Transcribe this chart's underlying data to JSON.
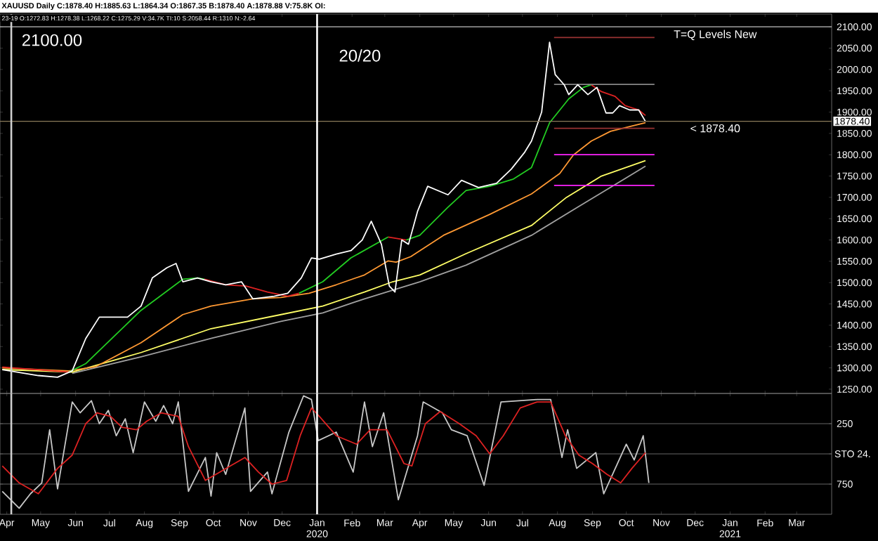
{
  "chart_data": [
    {
      "type": "line",
      "title": "XAUUSD Daily C:1878.40 H:1885.63 L:1864.34 O:1867.35 B:1878.40 A:1878.88 V:75.8K OI:",
      "subtitle": "23-19 O:1272.83 H:1278.38 L:1268.22 C:1275.29 V:34.7K TI:10 S:2058.44 R:1310 N:-2.64",
      "annotations": [
        "2100.00",
        "1878.40"
      ],
      "xlim": [
        "2019-03-26",
        "2021-04-01"
      ],
      "xticks": [
        "2019-04-01",
        "2019-05-01",
        "2019-06-01",
        "2019-07-01",
        "2019-08-01",
        "2019-09-01",
        "2019-10-01",
        "2019-11-01",
        "2019-12-01",
        "2020-01-01",
        "2020-02-01",
        "2020-03-01",
        "2020-04-01",
        "2020-05-01",
        "2020-06-01",
        "2020-07-01",
        "2020-08-01",
        "2020-09-01",
        "2020-10-01",
        "2020-11-01",
        "2020-12-01",
        "2021-01-01",
        "2021-02-01",
        "2021-03-01"
      ],
      "ylim": [
        1240,
        2130
      ],
      "yticks": [
        {
          "value": 1250,
          "label": "1250.00"
        },
        {
          "value": 1300,
          "label": "1300.00"
        },
        {
          "value": 1350,
          "label": "1350.00"
        },
        {
          "value": 1400,
          "label": "1400.00"
        },
        {
          "value": 1450,
          "label": "1450.00"
        },
        {
          "value": 1500,
          "label": "1500.00"
        },
        {
          "value": 1550,
          "label": "1550.00"
        },
        {
          "value": 1600,
          "label": "1600.00"
        },
        {
          "value": 1650,
          "label": "1650.00"
        },
        {
          "value": 1700,
          "label": "1700.00"
        },
        {
          "value": 1750,
          "label": "1750.00"
        },
        {
          "value": 1800,
          "label": "1800.00"
        },
        {
          "value": 1850,
          "label": "1850.00"
        },
        {
          "value": 1900,
          "label": "1900.00"
        },
        {
          "value": 1950,
          "label": "1950.00"
        },
        {
          "value": 2000,
          "label": "2000.00"
        },
        {
          "value": 2050,
          "label": "2050.00"
        },
        {
          "value": 2100,
          "label": "2100.00"
        }
      ],
      "tick_labels": "y",
      "ref_lines": [
        {
          "axis": "y",
          "value": 2100,
          "label": "T=Q Levels New",
          "color": "#c0c0c0"
        },
        {
          "axis": "y",
          "value": 1878.4,
          "label": "< 1878.40",
          "color": "#8a7a5a"
        },
        {
          "axis": "x",
          "value": "2020-01-01",
          "label": "20/20",
          "color": "#ffffff"
        },
        {
          "axis": "x",
          "value": "2019-04-05",
          "color": "#d0d0d0"
        }
      ],
      "series": [
        {
          "color": "#a0a0a0",
          "x": [
            "2019-05-29",
            "2019-07-29",
            "2019-09-29",
            "2019-11-30",
            "2020-01-06",
            "2020-02-12",
            "2020-04-01",
            "2020-05-12",
            "2020-07-09",
            "2020-08-19",
            "2020-10-18"
          ],
          "values": [
            1287,
            1326,
            1369,
            1409,
            1429,
            1462,
            1502,
            1541,
            1611,
            1677,
            1773
          ]
        },
        {
          "color": "#ffff66",
          "x": [
            "2019-03-28",
            "2019-05-29",
            "2019-07-29",
            "2019-09-29",
            "2019-11-30",
            "2020-01-06",
            "2020-02-12",
            "2020-03-08",
            "2020-04-01",
            "2020-05-12",
            "2020-07-09",
            "2020-08-09",
            "2020-09-09",
            "2020-10-18"
          ],
          "values": [
            1296,
            1290,
            1336,
            1392,
            1425,
            1445,
            1478,
            1502,
            1518,
            1568,
            1634,
            1700,
            1750,
            1786
          ]
        },
        {
          "color": "#ff9933",
          "x": [
            "2019-03-28",
            "2019-05-26",
            "2019-06-19",
            "2019-07-29",
            "2019-09-04",
            "2019-09-29",
            "2019-11-05",
            "2019-11-30",
            "2019-12-25",
            "2020-01-18",
            "2020-02-12",
            "2020-03-04",
            "2020-03-11",
            "2020-03-24",
            "2020-04-22",
            "2020-06-02",
            "2020-07-09",
            "2020-08-03",
            "2020-08-15",
            "2020-08-31",
            "2020-09-17",
            "2020-10-18"
          ],
          "values": [
            1300,
            1293,
            1303,
            1359,
            1425,
            1445,
            1462,
            1465,
            1475,
            1495,
            1518,
            1551,
            1548,
            1561,
            1611,
            1660,
            1708,
            1756,
            1799,
            1832,
            1855,
            1875
          ]
        },
        {
          "color": "#22cc22",
          "x": [
            "2019-05-26",
            "2019-06-10",
            "2019-07-29",
            "2019-09-04",
            "2019-09-17",
            "2019-09-23",
            "2019-10-01",
            "2019-12-16",
            "2020-01-06",
            "2020-01-31",
            "2020-03-04",
            "2020-03-12",
            "2020-03-20",
            "2020-04-01",
            "2020-04-26",
            "2020-05-12",
            "2020-06-02",
            "2020-06-23",
            "2020-07-09",
            "2020-07-25",
            "2020-08-11",
            "2020-08-24",
            "2020-08-31"
          ],
          "values": [
            1290,
            1310,
            1435,
            1508,
            1511,
            1508,
            null,
            1475,
            1502,
            1558,
            1607,
            null,
            1600,
            1611,
            1677,
            1716,
            1726,
            1743,
            1770,
            1875,
            1931,
            1958,
            1964
          ]
        },
        {
          "color": "#dd2222",
          "x": [
            "2019-03-28",
            "2019-05-26",
            "2019-06-01",
            "2019-09-23",
            "2019-10-12",
            "2019-10-30",
            "2019-11-18",
            "2019-12-06",
            "2019-12-16",
            "2020-01-01",
            "2020-03-04",
            "2020-03-20",
            "2020-04-01",
            "2020-08-31",
            "2020-09-09",
            "2020-09-21",
            "2020-09-30",
            "2020-10-12",
            "2020-10-18"
          ],
          "values": [
            1302,
            1290,
            null,
            1508,
            1495,
            1492,
            1478,
            1468,
            1475,
            null,
            1607,
            1600,
            null,
            1964,
            1948,
            1937,
            1915,
            1905,
            1892
          ]
        },
        {
          "color": "#993333",
          "x": [
            "2020-07-29",
            "2020-10-26"
          ],
          "values": [
            2075,
            2075
          ]
        },
        {
          "color": "#888888",
          "x": [
            "2020-07-29",
            "2020-10-26"
          ],
          "values": [
            1965,
            1965
          ]
        },
        {
          "color": "#993333",
          "x": [
            "2020-07-29",
            "2020-10-26"
          ],
          "values": [
            1862,
            1862
          ]
        },
        {
          "color": "#ff22ff",
          "x": [
            "2020-07-29",
            "2020-10-26"
          ],
          "values": [
            1800,
            1800
          ]
        },
        {
          "color": "#ff22ff",
          "x": [
            "2020-07-29",
            "2020-10-26"
          ],
          "values": [
            1728,
            1728
          ]
        },
        {
          "color": "#ffffff",
          "x": [
            "2019-03-28",
            "2019-04-29",
            "2019-05-16",
            "2019-05-29",
            "2019-06-10",
            "2019-06-22",
            "2019-07-17",
            "2019-07-29",
            "2019-08-08",
            "2019-08-21",
            "2019-08-29",
            "2019-09-04",
            "2019-09-17",
            "2019-09-29",
            "2019-10-12",
            "2019-10-26",
            "2019-11-05",
            "2019-11-24",
            "2019-12-06",
            "2019-12-18",
            "2019-12-27",
            "2020-01-03",
            "2020-01-18",
            "2020-01-31",
            "2020-02-10",
            "2020-02-18",
            "2020-02-27",
            "2020-03-05",
            "2020-03-10",
            "2020-03-16",
            "2020-03-22",
            "2020-03-30",
            "2020-04-08",
            "2020-04-26",
            "2020-05-08",
            "2020-05-23",
            "2020-06-08",
            "2020-06-21",
            "2020-07-03",
            "2020-07-09",
            "2020-07-18",
            "2020-07-25",
            "2020-07-30",
            "2020-08-07",
            "2020-08-11",
            "2020-08-19",
            "2020-08-28",
            "2020-09-05",
            "2020-09-13",
            "2020-09-19",
            "2020-09-25",
            "2020-10-04",
            "2020-10-12",
            "2020-10-18"
          ],
          "values": [
            1296,
            1282,
            1278,
            1293,
            1369,
            1419,
            1419,
            1445,
            1511,
            1535,
            1545,
            1502,
            1511,
            1502,
            1495,
            1502,
            1462,
            1468,
            1475,
            1511,
            1558,
            1555,
            1567,
            1575,
            1600,
            1644,
            1590,
            1492,
            1478,
            1600,
            1590,
            1667,
            1726,
            1706,
            1740,
            1723,
            1733,
            1766,
            1806,
            1832,
            1900,
            2064,
            1988,
            1964,
            1941,
            1964,
            1941,
            1958,
            1898,
            1898,
            1915,
            1905,
            1905,
            1878
          ]
        }
      ]
    },
    {
      "type": "line",
      "annotations": [
        "STO 24."
      ],
      "xlim": [
        "2019-03-26",
        "2021-04-01"
      ],
      "xticks": [
        {
          "value": "2019-04-01",
          "label": "Apr"
        },
        {
          "value": "2019-05-01",
          "label": "May"
        },
        {
          "value": "2019-06-01",
          "label": "Jun"
        },
        {
          "value": "2019-07-01",
          "label": "Jul"
        },
        {
          "value": "2019-08-01",
          "label": "Aug"
        },
        {
          "value": "2019-09-01",
          "label": "Sep"
        },
        {
          "value": "2019-10-01",
          "label": "Oct"
        },
        {
          "value": "2019-11-01",
          "label": "Nov"
        },
        {
          "value": "2019-12-01",
          "label": "Dec"
        },
        {
          "value": "2020-01-01",
          "label": "Jan 2020"
        },
        {
          "value": "2020-02-01",
          "label": "Feb"
        },
        {
          "value": "2020-03-01",
          "label": "Mar"
        },
        {
          "value": "2020-04-01",
          "label": "Apr"
        },
        {
          "value": "2020-05-01",
          "label": "May"
        },
        {
          "value": "2020-06-01",
          "label": "Jun"
        },
        {
          "value": "2020-07-01",
          "label": "Jul"
        },
        {
          "value": "2020-08-01",
          "label": "Aug"
        },
        {
          "value": "2020-09-01",
          "label": "Sep"
        },
        {
          "value": "2020-10-01",
          "label": "Oct"
        },
        {
          "value": "2020-11-01",
          "label": "Nov"
        },
        {
          "value": "2020-12-01",
          "label": "Dec"
        },
        {
          "value": "2021-01-01",
          "label": "Jan 2021"
        },
        {
          "value": "2021-02-01",
          "label": "Feb"
        },
        {
          "value": "2021-03-01",
          "label": "Mar"
        }
      ],
      "ylim": [
        1000,
        0
      ],
      "yticks": [
        250,
        {
          "value": 500,
          "label": null
        },
        750
      ],
      "grid": "y",
      "ref_lines": [
        {
          "axis": "x",
          "value": "2020-01-01",
          "color": "#ffffff"
        },
        {
          "axis": "x",
          "value": "2019-04-05",
          "color": "#d0d0d0"
        }
      ],
      "series": [
        {
          "color": "#c8c8c8",
          "x": [
            "2019-03-28",
            "2019-04-12",
            "2019-04-22",
            "2019-05-02",
            "2019-05-09",
            "2019-05-16",
            "2019-05-29",
            "2019-06-05",
            "2019-06-15",
            "2019-06-22",
            "2019-06-30",
            "2019-07-07",
            "2019-07-15",
            "2019-07-22",
            "2019-08-01",
            "2019-08-11",
            "2019-08-18",
            "2019-08-26",
            "2019-08-31",
            "2019-09-09",
            "2019-09-24",
            "2019-09-29",
            "2019-10-04",
            "2019-10-12",
            "2019-10-29",
            "2019-11-03",
            "2019-11-18",
            "2019-11-22",
            "2019-12-07",
            "2019-12-20",
            "2019-12-27",
            "2020-01-02",
            "2020-01-18",
            "2020-02-02",
            "2020-02-12",
            "2020-02-19",
            "2020-02-29",
            "2020-03-13",
            "2020-03-30",
            "2020-04-04",
            "2020-04-21",
            "2020-04-29",
            "2020-05-13",
            "2020-05-28",
            "2020-06-12",
            "2020-07-14",
            "2020-07-26",
            "2020-08-05",
            "2020-08-10",
            "2020-08-18",
            "2020-09-04",
            "2020-09-11",
            "2020-10-01",
            "2020-10-08",
            "2020-10-16",
            "2020-10-21"
          ],
          "values": [
            810,
            950,
            830,
            740,
            300,
            790,
            70,
            160,
            60,
            250,
            140,
            350,
            210,
            490,
            70,
            230,
            100,
            250,
            70,
            810,
            530,
            850,
            490,
            670,
            120,
            810,
            650,
            830,
            320,
            20,
            50,
            390,
            320,
            650,
            70,
            440,
            160,
            880,
            350,
            70,
            160,
            300,
            350,
            760,
            70,
            50,
            50,
            530,
            300,
            620,
            490,
            830,
            420,
            550,
            350,
            740
          ]
        },
        {
          "color": "#dd2222",
          "x": [
            "2019-03-28",
            "2019-04-12",
            "2019-04-29",
            "2019-05-16",
            "2019-05-29",
            "2019-06-10",
            "2019-06-20",
            "2019-07-02",
            "2019-07-12",
            "2019-07-25",
            "2019-08-03",
            "2019-08-16",
            "2019-08-31",
            "2019-09-09",
            "2019-09-24",
            "2019-10-07",
            "2019-10-16",
            "2019-10-29",
            "2019-11-10",
            "2019-11-22",
            "2019-12-05",
            "2019-12-17",
            "2019-12-27",
            "2020-01-03",
            "2020-01-18",
            "2020-02-05",
            "2020-02-17",
            "2020-03-03",
            "2020-03-18",
            "2020-03-25",
            "2020-04-06",
            "2020-04-19",
            "2020-05-06",
            "2020-05-21",
            "2020-06-02",
            "2020-06-14",
            "2020-06-29",
            "2020-07-14",
            "2020-07-26",
            "2020-08-08",
            "2020-08-20",
            "2020-09-01",
            "2020-09-14",
            "2020-09-26",
            "2020-10-06",
            "2020-10-18"
          ],
          "values": [
            600,
            740,
            830,
            620,
            510,
            250,
            160,
            190,
            280,
            300,
            230,
            160,
            190,
            440,
            720,
            650,
            600,
            530,
            650,
            750,
            720,
            350,
            120,
            190,
            350,
            420,
            300,
            300,
            580,
            600,
            250,
            150,
            250,
            350,
            500,
            350,
            120,
            70,
            70,
            350,
            510,
            580,
            670,
            740,
            620,
            490
          ]
        }
      ]
    }
  ]
}
